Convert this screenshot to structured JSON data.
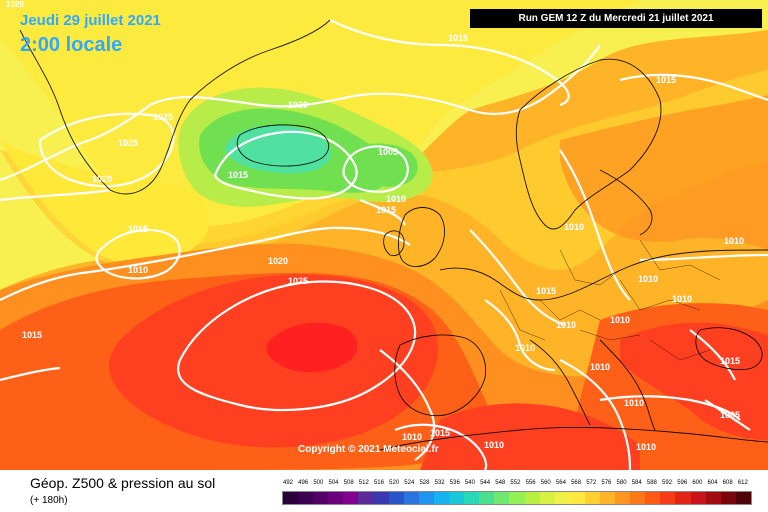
{
  "header": {
    "date_label": "Jeudi 29 juillet 2021",
    "time_label": "2:00 locale",
    "run_label": "Run GEM 12 Z du Mercredi 21 juillet 2021"
  },
  "copyright": "Copyright © 2021 Meteociel.fr",
  "legend": {
    "title": "Géop. Z500 & pression au sol",
    "subtitle": "(+ 180h)",
    "scale_values": [
      "492",
      "496",
      "500",
      "504",
      "508",
      "512",
      "516",
      "520",
      "524",
      "528",
      "532",
      "536",
      "540",
      "544",
      "548",
      "552",
      "556",
      "560",
      "564",
      "568",
      "572",
      "576",
      "580",
      "584",
      "588",
      "592",
      "596",
      "600",
      "604",
      "608",
      "612"
    ],
    "scale_colors": [
      "#2a0038",
      "#3d0050",
      "#520066",
      "#6a007c",
      "#82008f",
      "#5a2a9a",
      "#3a3ab0",
      "#2a55c8",
      "#2a75e0",
      "#1f95f0",
      "#14b2f0",
      "#19c8d8",
      "#29d8b8",
      "#4ae090",
      "#6ee870",
      "#92f055",
      "#b8f040",
      "#d8f040",
      "#f0f048",
      "#ffe840",
      "#ffd030",
      "#ffb428",
      "#ff9620",
      "#ff7818",
      "#ff5a14",
      "#f53c14",
      "#e52418",
      "#c81418",
      "#a00c10",
      "#78060a",
      "#500306"
    ],
    "colors": {
      "warm_core": "#ff2020",
      "red": "#ff4020",
      "red_orange": "#ff6018",
      "orange": "#ff9020",
      "light_orange": "#ffb428",
      "gold": "#ffd030",
      "yellow": "#ffe838",
      "pale_yellow": "#f8f050",
      "lime": "#b8ec48",
      "green": "#70e050",
      "teal": "#50e0a0"
    }
  },
  "isobar_labels": [
    "1020",
    "1025",
    "1025",
    "1020",
    "1015",
    "1015",
    "1010",
    "1020",
    "1015",
    "1005",
    "1010",
    "1015",
    "1020",
    "1025",
    "1015",
    "1010",
    "1015",
    "1010",
    "1010",
    "1015",
    "1010",
    "1010",
    "1010",
    "1010",
    "1010",
    "1015",
    "1010",
    "1005",
    "1010",
    "1010",
    "1015",
    "1010"
  ]
}
